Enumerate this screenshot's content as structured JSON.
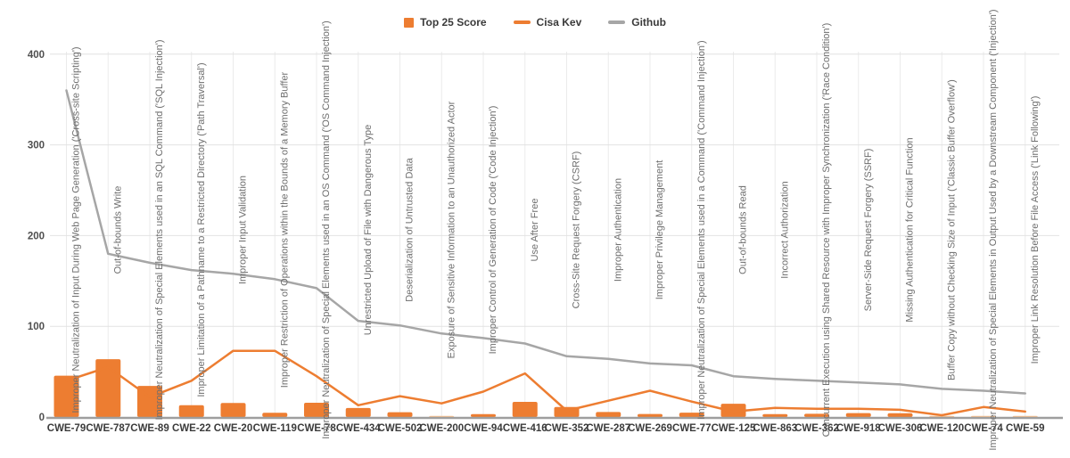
{
  "legend": [
    {
      "label": "Top 25 Score",
      "marker": "square",
      "color": "#ED7D31"
    },
    {
      "label": "Cisa Kev",
      "marker": "line",
      "color": "#ED7D31"
    },
    {
      "label": "Github",
      "marker": "line",
      "color": "#A6A6A6"
    }
  ],
  "chart_data": {
    "type": "bar",
    "subtype": "bar+line combo",
    "title": "",
    "xlabel": "",
    "ylabel": "",
    "ylim": [
      0,
      400
    ],
    "yticks": [
      0,
      100,
      200,
      300,
      400
    ],
    "grid": "on",
    "legend_position": "top-center",
    "categories": [
      "CWE-79",
      "CWE-787",
      "CWE-89",
      "CWE-22",
      "CWE-20",
      "CWE-119",
      "CWE-78",
      "CWE-434",
      "CWE-502",
      "CWE-200",
      "CWE-94",
      "CWE-416",
      "CWE-352",
      "CWE-287",
      "CWE-269",
      "CWE-77",
      "CWE-125",
      "CWE-863",
      "CWE-362",
      "CWE-918",
      "CWE-306",
      "CWE-120",
      "CWE-74",
      "CWE-59"
    ],
    "category_names": [
      "Improper Neutralization of Input During Web Page Generation ('Cross-site Scripting')",
      "Out-of-bounds Write",
      "Improper Neutralization of Special Elements used in an SQL Command ('SQL Injection')",
      "Improper Limitation of a Pathname to a Restricted Directory ('Path Traversal')",
      "Improper Input Validation",
      "Improper Restriction of Operations within the Bounds of a Memory Buffer",
      "Improper Neutralization of Special Elements used in an OS Command ('OS Command Injection')",
      "Unrestricted Upload of File with Dangerous Type",
      "Deserialization of Untrusted Data",
      "Exposure of Sensitive Information to an Unauthorized Actor",
      "Improper Control of Generation of Code ('Code Injection')",
      "Use After Free",
      "Cross-Site Request Forgery (CSRF)",
      "Improper Authentication",
      "Improper Privilege Management",
      "Improper Neutralization of Special Elements used in a Command ('Command Injection')",
      "Out-of-bounds Read",
      "Incorrect Authorization",
      "Concurrent Execution using Shared Resource with Improper Synchronization ('Race Condition')",
      "Server-Side Request Forgery (SSRF)",
      "Missing Authentication for Critical Function",
      "Buffer Copy without Checking Size of Input ('Classic Buffer Overflow')",
      "Improper Neutralization of Special Elements in Output Used by a Downstream Component ('Injection')",
      "Improper Link Resolution Before File Access ('Link Following')"
    ],
    "series": [
      {
        "name": "Top 25 Score",
        "type": "bar",
        "color": "#ED7D31",
        "values": [
          45.5,
          63.7,
          34.3,
          13.0,
          15.5,
          4.7,
          15.7,
          10.0,
          5.3,
          1.0,
          3.2,
          16.7,
          11.1,
          5.5,
          3.3,
          4.8,
          14.6,
          3.2,
          3.6,
          4.3,
          4.2,
          1.0,
          1.0,
          1.0
        ]
      },
      {
        "name": "Cisa Kev",
        "type": "line",
        "color": "#ED7D31",
        "values": [
          40,
          55,
          22,
          40,
          73,
          73,
          45,
          13,
          23,
          15,
          28,
          48,
          7,
          18,
          29,
          17,
          6,
          10,
          9,
          9,
          8,
          2,
          11,
          6
        ]
      },
      {
        "name": "Github",
        "type": "line",
        "color": "#A6A6A6",
        "values": [
          360,
          180,
          170,
          162,
          158,
          152,
          142,
          106,
          101,
          92,
          87,
          81,
          67,
          64,
          59,
          57,
          45,
          42,
          40,
          38,
          36,
          31,
          29,
          26
        ]
      }
    ]
  },
  "style": {
    "bar_color": "#ED7D31",
    "tiny_bar_color": "#F8C291",
    "cisa_line_color": "#ED7D31",
    "github_line_color": "#A6A6A6",
    "grid_h_color": "#E2E2E2",
    "grid_v_color": "#EBEBEB",
    "axis_color": "#9E9E9E",
    "xtick_color": "#3B3B3B",
    "ytick_color": "#4F4F4F",
    "rotated_label_color": "#6E6E6E"
  }
}
